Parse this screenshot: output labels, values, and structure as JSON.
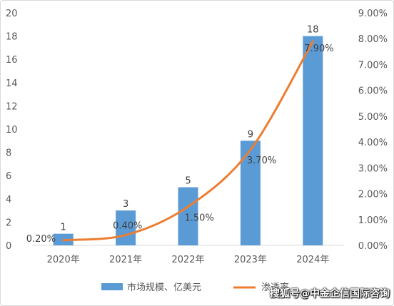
{
  "chart_data": {
    "type": "bar",
    "categories": [
      "2020年",
      "2021年",
      "2022年",
      "2023年",
      "2024年"
    ],
    "series": [
      {
        "name": "市场规模、亿美元",
        "type": "bar",
        "axis": "left",
        "values": [
          1,
          3,
          5,
          9,
          18
        ],
        "color": "#5b9bd5"
      },
      {
        "name": "渗透率",
        "type": "line",
        "axis": "right",
        "values": [
          0.2,
          0.4,
          1.5,
          3.7,
          7.9
        ],
        "color": "#ed7d31"
      }
    ],
    "bar_labels": [
      "1",
      "3",
      "5",
      "9",
      "18"
    ],
    "line_labels": [
      "0.20%",
      "0.40%",
      "1.50%",
      "3.70%",
      "7.90%"
    ],
    "y_left": {
      "ylim": [
        0,
        20
      ],
      "ticks": [
        0,
        2,
        4,
        6,
        8,
        10,
        12,
        14,
        16,
        18,
        20
      ]
    },
    "y_right": {
      "ylim": [
        0,
        9
      ],
      "ticks": [
        "0.00%",
        "1.00%",
        "2.00%",
        "3.00%",
        "4.00%",
        "5.00%",
        "6.00%",
        "7.00%",
        "8.00%",
        "9.00%"
      ]
    },
    "legend_placement": "bottom",
    "grid": false
  },
  "watermark": "搜狐号@中金企信国际咨询"
}
